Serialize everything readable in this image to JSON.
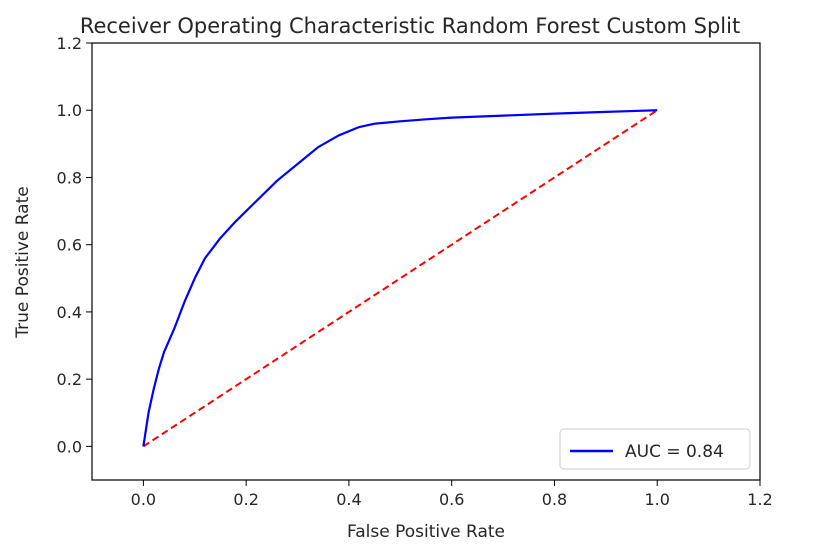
{
  "chart_data": {
    "type": "line",
    "title": "Receiver Operating Characteristic Random Forest Custom Split",
    "xlabel": "False Positive Rate",
    "ylabel": "True Positive Rate",
    "xlim": [
      -0.1,
      1.2
    ],
    "ylim": [
      -0.1,
      1.2
    ],
    "xticks": [
      0.0,
      0.2,
      0.4,
      0.6,
      0.8,
      1.0,
      1.2
    ],
    "yticks": [
      0.0,
      0.2,
      0.4,
      0.6,
      0.8,
      1.0,
      1.2
    ],
    "xtick_labels": [
      "0.0",
      "0.2",
      "0.4",
      "0.6",
      "0.8",
      "1.0",
      "1.2"
    ],
    "ytick_labels": [
      "0.0",
      "0.2",
      "0.4",
      "0.6",
      "0.8",
      "1.0",
      "1.2"
    ],
    "grid": false,
    "legend_position": "lower-right",
    "series": [
      {
        "name": "AUC = 0.84",
        "color": "#0000ff",
        "style": "solid",
        "x": [
          0.0,
          0.005,
          0.01,
          0.02,
          0.03,
          0.04,
          0.06,
          0.08,
          0.1,
          0.12,
          0.15,
          0.18,
          0.22,
          0.26,
          0.3,
          0.34,
          0.38,
          0.42,
          0.45,
          0.5,
          0.55,
          0.6,
          0.7,
          0.8,
          0.9,
          1.0
        ],
        "y": [
          0.0,
          0.05,
          0.1,
          0.17,
          0.23,
          0.28,
          0.35,
          0.43,
          0.5,
          0.56,
          0.62,
          0.67,
          0.73,
          0.79,
          0.84,
          0.89,
          0.925,
          0.95,
          0.96,
          0.967,
          0.973,
          0.978,
          0.984,
          0.99,
          0.995,
          1.0
        ]
      },
      {
        "name": "",
        "color": "#ff0000",
        "style": "dashed",
        "x": [
          0.0,
          1.0
        ],
        "y": [
          0.0,
          1.0
        ]
      }
    ],
    "legend": {
      "entries": [
        {
          "label": "AUC = 0.84",
          "color": "#0000ff"
        }
      ]
    }
  }
}
